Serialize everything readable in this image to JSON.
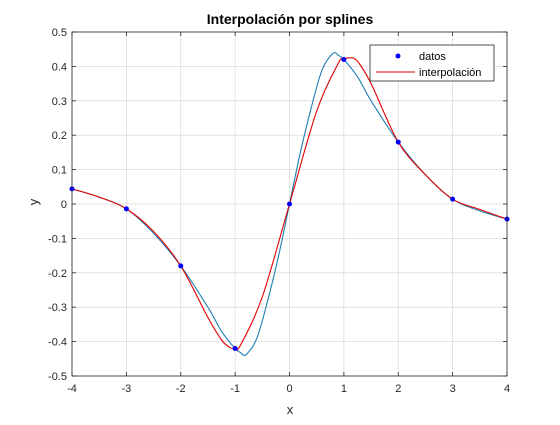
{
  "chart_data": {
    "type": "line",
    "title": "Interpolación por splines",
    "xlabel": "x",
    "ylabel": "y",
    "xlim": [
      -4,
      4
    ],
    "ylim": [
      -0.5,
      0.5
    ],
    "x_ticks": [
      -4,
      -3,
      -2,
      -1,
      0,
      1,
      2,
      3,
      4
    ],
    "y_ticks": [
      -0.5,
      -0.4,
      -0.3,
      -0.2,
      -0.1,
      0,
      0.1,
      0.2,
      0.3,
      0.4,
      0.5
    ],
    "x_tick_labels": [
      "-4",
      "-3",
      "-2",
      "-1",
      "0",
      "1",
      "2",
      "3",
      "4"
    ],
    "y_tick_labels": [
      "-0.5",
      "-0.4",
      "-0.3",
      "-0.2",
      "-0.1",
      "0",
      "0.1",
      "0.2",
      "0.3",
      "0.4",
      "0.5"
    ],
    "grid": true,
    "legend_position": "top-right",
    "series": [
      {
        "name": "datos",
        "style": "markers",
        "color": "#0000ff",
        "x": [
          -4,
          -3,
          -2,
          -1,
          0,
          1,
          2,
          3,
          4
        ],
        "y": [
          0.044,
          -0.014,
          -0.18,
          -0.42,
          0.0,
          0.42,
          0.18,
          0.014,
          -0.044
        ]
      },
      {
        "name": "interpolación",
        "style": "line",
        "color": "#e00000",
        "x": [
          -4,
          -3.5,
          -3,
          -2.5,
          -2,
          -1.5,
          -1.25,
          -1.1,
          -1,
          -0.9,
          -0.5,
          0,
          0.5,
          0.9,
          1,
          1.1,
          1.25,
          1.5,
          2,
          2.5,
          3,
          3.5,
          4
        ],
        "y": [
          0.044,
          0.02,
          -0.014,
          -0.08,
          -0.18,
          -0.33,
          -0.395,
          -0.417,
          -0.42,
          -0.41,
          -0.27,
          0.0,
          0.27,
          0.41,
          0.42,
          0.425,
          0.415,
          0.35,
          0.18,
          0.085,
          0.014,
          -0.016,
          -0.044
        ]
      },
      {
        "name": "",
        "style": "line",
        "color": "#1f7fb4",
        "x": [
          -4,
          -3.5,
          -3,
          -2.5,
          -2,
          -1.5,
          -1.25,
          -1,
          -0.9,
          -0.8,
          -0.6,
          -0.4,
          -0.2,
          0,
          0.2,
          0.4,
          0.6,
          0.8,
          0.9,
          1,
          1.25,
          1.5,
          2,
          2.5,
          3,
          3.5,
          4
        ],
        "y": [
          0.044,
          0.02,
          -0.014,
          -0.085,
          -0.18,
          -0.3,
          -0.37,
          -0.42,
          -0.432,
          -0.438,
          -0.39,
          -0.28,
          -0.15,
          0.0,
          0.15,
          0.28,
          0.39,
          0.438,
          0.432,
          0.42,
          0.37,
          0.3,
          0.18,
          0.085,
          0.014,
          -0.02,
          -0.044
        ]
      }
    ]
  }
}
